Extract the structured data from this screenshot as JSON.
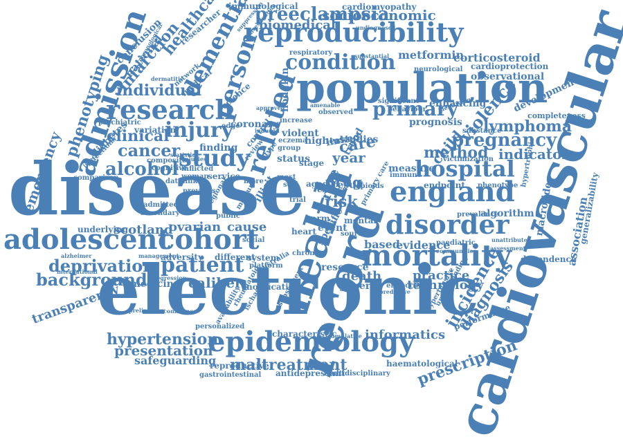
{
  "colors": {
    "word": "#4a80b5",
    "background": "#ffffff"
  },
  "words": [
    "disease",
    "electronic",
    "cardiovascular",
    "health",
    "record",
    "population",
    "reproducibility",
    "adolescent",
    "cohort",
    "mortality",
    "disorder",
    "england",
    "epidemiology",
    "admission",
    "research",
    "related",
    "hospital",
    "study",
    "injury",
    "patient",
    "deprivation",
    "background",
    "condition",
    "primary",
    "individual",
    "cancer",
    "alcohol",
    "clinical",
    "dementia",
    "person",
    "pregnancy",
    "lymphoma",
    "method",
    "indicator",
    "violence",
    "child",
    "incidence",
    "diagnosis",
    "prescription",
    "hypertension",
    "presentation",
    "maltreatment",
    "safeguarding",
    "informatics",
    "practice",
    "technology",
    "caliber",
    "medicine",
    "transparency",
    "emergency",
    "phenotyping",
    "infarction",
    "healthcare",
    "national",
    "preeclampsia",
    "biomedical",
    "socioeconomic",
    "metformin",
    "corticosteroid",
    "cardioprotection",
    "observational",
    "immunological",
    "cardiomyopathy",
    "development",
    "completeness",
    "association",
    "generalizability",
    "dependence",
    "algorithm",
    "scotland",
    "ovarian",
    "underlying",
    "cause",
    "based",
    "evidence",
    "resource",
    "death",
    "general",
    "year",
    "risk",
    "drug",
    "care",
    "trend",
    "rate",
    "finding",
    "service",
    "woman",
    "coronary",
    "violent",
    "eczema",
    "hodgkin",
    "edge",
    "mental",
    "event",
    "harm",
    "illicit",
    "different",
    "system",
    "platform",
    "adversity",
    "admitted",
    "secondary",
    "comparison",
    "diabetes",
    "infections",
    "variation",
    "psychiatric",
    "composite",
    "cognitive",
    "datalink",
    "network",
    "medical",
    "science",
    "conclusion",
    "researcher",
    "chronological",
    "dermatitis",
    "respiratory",
    "substantial",
    "neurological",
    "enhancing",
    "significant",
    "behaviour",
    "prognosis",
    "substance",
    "victimization",
    "measure",
    "immune",
    "endpoint",
    "phenotype",
    "hypertrophic",
    "macrolide",
    "prevalence",
    "paediatric",
    "communities",
    "unattributed",
    "assessment",
    "endocrine",
    "haematological",
    "multidisciplinary",
    "antidepressant",
    "gastrointestinal",
    "reproductive",
    "personalized",
    "characteristic",
    "notification",
    "australia",
    "preliminary",
    "confidence",
    "availability",
    "alzheimer",
    "international",
    "management",
    "regression",
    "higher",
    "studies",
    "linked",
    "opioids",
    "result",
    "excess",
    "approved",
    "induced",
    "undiagnosed",
    "suppression",
    "investigation",
    "subsequent",
    "hypertensive",
    "understanding",
    "performance",
    "predictive",
    "chronic",
    "specific",
    "heart",
    "stage",
    "status",
    "group",
    "review",
    "control",
    "observed",
    "increase",
    "most",
    "self",
    "aged",
    "social",
    "source",
    "trial",
    "primary care",
    "previous",
    "type",
    "more",
    "public",
    "ischaemic",
    "rheumatoid",
    "statistic",
    "inflicted",
    "injuries",
    "regional",
    "medium",
    "identifying",
    "amenable",
    "cumulative",
    "infection"
  ]
}
